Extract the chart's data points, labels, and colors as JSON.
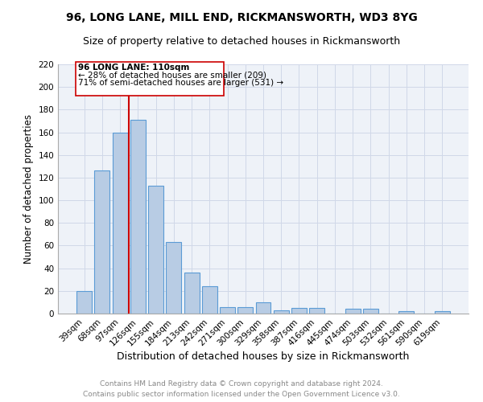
{
  "title1": "96, LONG LANE, MILL END, RICKMANSWORTH, WD3 8YG",
  "title2": "Size of property relative to detached houses in Rickmansworth",
  "xlabel": "Distribution of detached houses by size in Rickmansworth",
  "ylabel": "Number of detached properties",
  "categories": [
    "39sqm",
    "68sqm",
    "97sqm",
    "126sqm",
    "155sqm",
    "184sqm",
    "213sqm",
    "242sqm",
    "271sqm",
    "300sqm",
    "329sqm",
    "358sqm",
    "387sqm",
    "416sqm",
    "445sqm",
    "474sqm",
    "503sqm",
    "532sqm",
    "561sqm",
    "590sqm",
    "619sqm"
  ],
  "values": [
    20,
    126,
    160,
    171,
    113,
    63,
    36,
    24,
    6,
    6,
    10,
    3,
    5,
    5,
    0,
    4,
    4,
    0,
    2,
    0,
    2
  ],
  "bar_color": "#b8cce4",
  "bar_edge_color": "#5b9bd5",
  "bar_edge_width": 0.8,
  "vline_x": 2.5,
  "vline_color": "#cc0000",
  "vline_label": "96 LONG LANE: 110sqm",
  "annotation_line1": "← 28% of detached houses are smaller (209)",
  "annotation_line2": "71% of semi-detached houses are larger (531) →",
  "box_color": "#cc0000",
  "ylim": [
    0,
    220
  ],
  "yticks": [
    0,
    20,
    40,
    60,
    80,
    100,
    120,
    140,
    160,
    180,
    200,
    220
  ],
  "grid_color": "#d0d8e8",
  "background_color": "#eef2f8",
  "footer1": "Contains HM Land Registry data © Crown copyright and database right 2024.",
  "footer2": "Contains public sector information licensed under the Open Government Licence v3.0.",
  "title1_fontsize": 10,
  "title2_fontsize": 9,
  "xlabel_fontsize": 9,
  "ylabel_fontsize": 8.5,
  "tick_fontsize": 7.5,
  "annotation_fontsize": 7.5,
  "footer_fontsize": 6.5
}
